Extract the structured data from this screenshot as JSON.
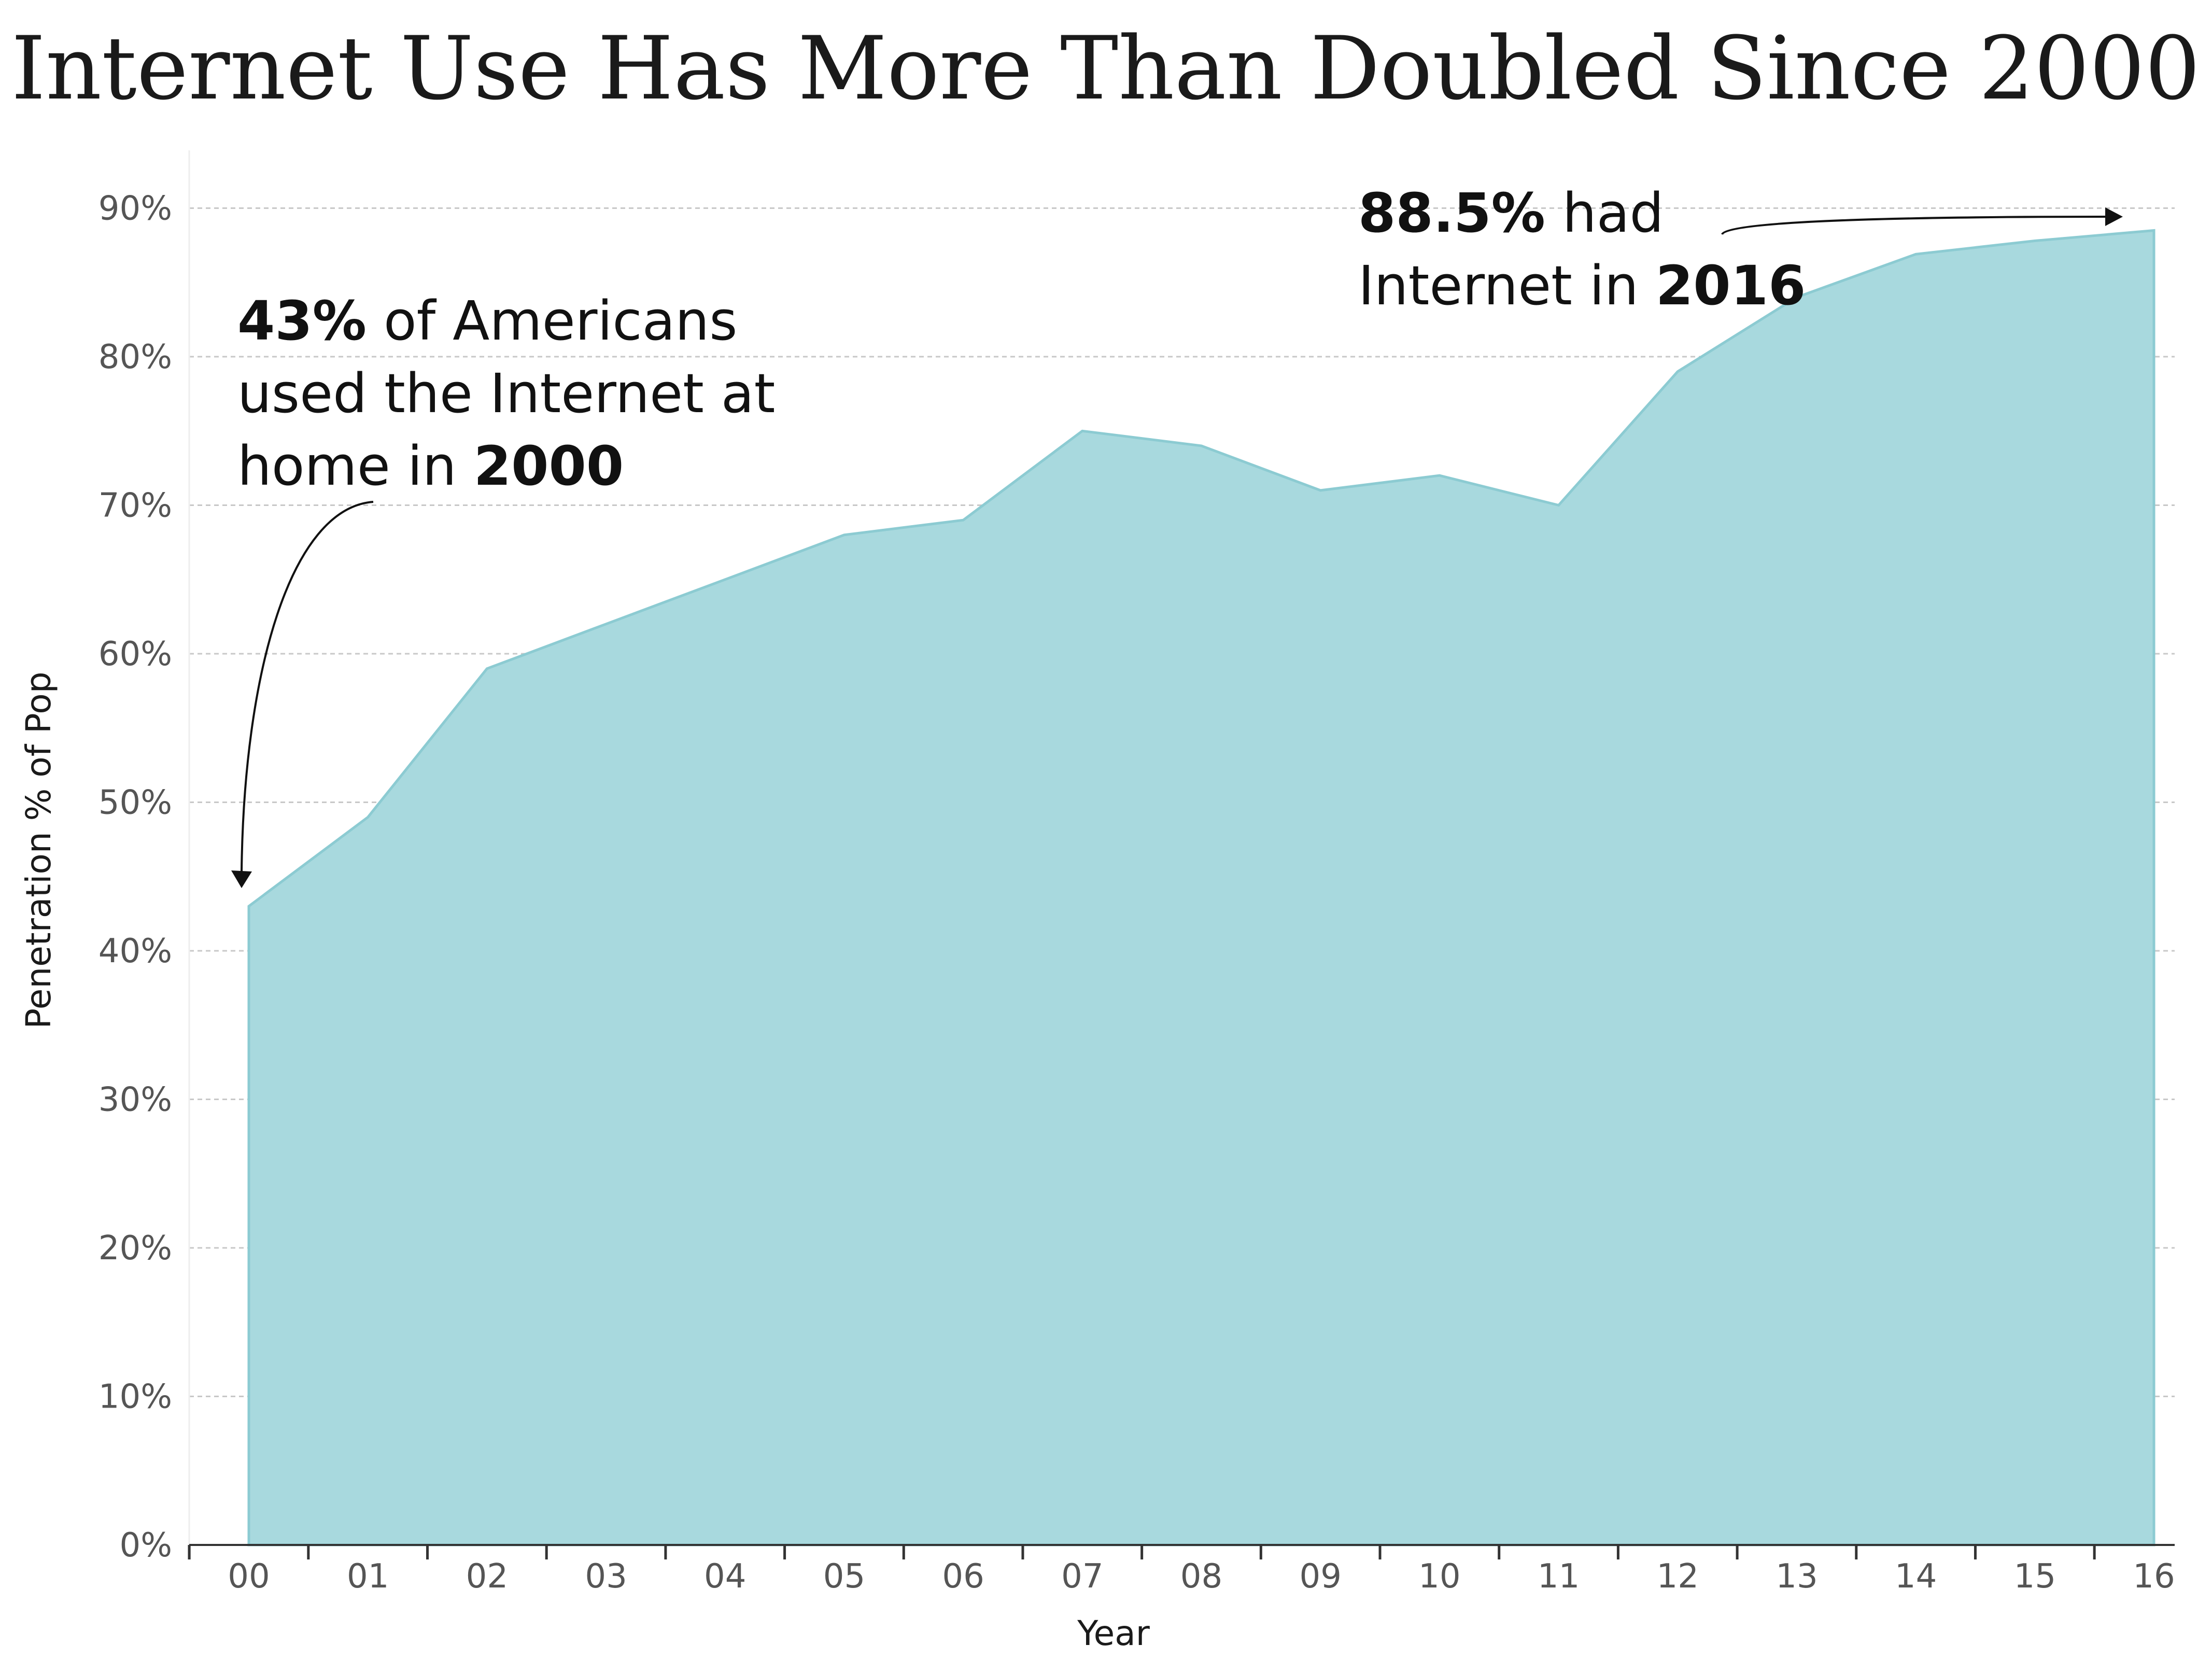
{
  "chart_data": {
    "type": "area",
    "title": "Internet Use Has More Than Doubled Since 2000",
    "xlabel": "Year",
    "ylabel": "Penetration % of Pop",
    "categories": [
      "00",
      "01",
      "02",
      "03",
      "04",
      "05",
      "06",
      "07",
      "08",
      "09",
      "10",
      "11",
      "12",
      "13",
      "14",
      "15",
      "16"
    ],
    "values": [
      43,
      49,
      59,
      62,
      65,
      68,
      69,
      75,
      74,
      71,
      72,
      70,
      79,
      84,
      86.9,
      87.8,
      88.5
    ],
    "y_ticks": [
      "0%",
      "10%",
      "20%",
      "30%",
      "40%",
      "50%",
      "60%",
      "70%",
      "80%",
      "90%"
    ],
    "ylim": [
      0,
      92.5
    ],
    "grid": true,
    "colors": {
      "area_fill": "#a8d9de",
      "area_stroke": "#8ccbd2"
    },
    "annotations": [
      {
        "category": "00",
        "lines": [
          [
            {
              "text": "43%",
              "bold": true
            },
            {
              "text": " of Americans",
              "bold": false
            }
          ],
          [
            {
              "text": "used the Internet at",
              "bold": false
            }
          ],
          [
            {
              "text": "home in ",
              "bold": false
            },
            {
              "text": "2000",
              "bold": true
            }
          ]
        ]
      },
      {
        "category": "16",
        "lines": [
          [
            {
              "text": "88.5%",
              "bold": true
            },
            {
              "text": " had",
              "bold": false
            }
          ],
          [
            {
              "text": "Internet in ",
              "bold": false
            },
            {
              "text": "2016",
              "bold": true
            }
          ]
        ]
      }
    ]
  }
}
